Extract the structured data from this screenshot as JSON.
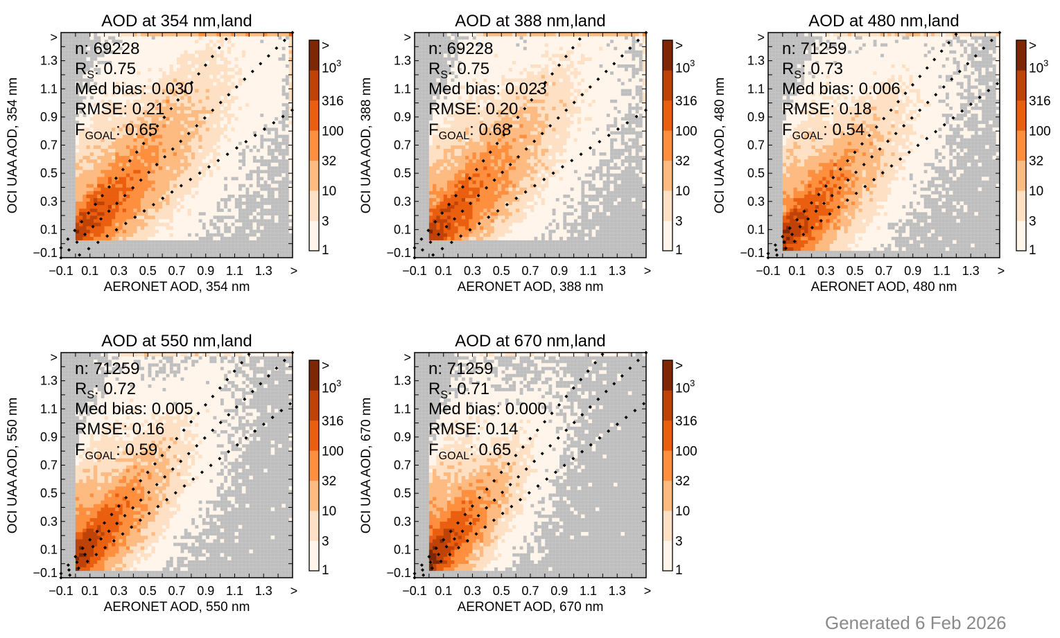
{
  "chart_data": [
    {
      "type": "heatmap",
      "title": "AOD at 354 nm,land",
      "xlabel": "AERONET AOD, 354 nm",
      "ylabel": "OCI UAA AOD, 354 nm",
      "wavelength_nm": 354,
      "stats": {
        "n": "n: 69228",
        "rs_main": "R",
        "rs_sub": "S",
        "rs_val": ": 0.75",
        "med_bias": "Med bias: 0.030",
        "rmse": "RMSE: 0.21",
        "fgoal_main": "F",
        "fgoal_sub": "GOAL",
        "fgoal_val": ": 0.65"
      },
      "n": 69228,
      "rs": 0.75,
      "median_bias": 0.03,
      "rmse_value": 0.21,
      "f_goal": 0.65,
      "envelope": {
        "offset": 0.1,
        "slope": 0.3
      }
    },
    {
      "type": "heatmap",
      "title": "AOD at 388 nm,land",
      "xlabel": "AERONET AOD, 388 nm",
      "ylabel": "OCI UAA AOD, 388 nm",
      "wavelength_nm": 388,
      "stats": {
        "n": "n: 69228",
        "rs_main": "R",
        "rs_sub": "S",
        "rs_val": ": 0.75",
        "med_bias": "Med bias: 0.023",
        "rmse": "RMSE: 0.20",
        "fgoal_main": "F",
        "fgoal_sub": "GOAL",
        "fgoal_val": ": 0.68"
      },
      "n": 69228,
      "rs": 0.75,
      "median_bias": 0.023,
      "rmse_value": 0.2,
      "f_goal": 0.68,
      "envelope": {
        "offset": 0.1,
        "slope": 0.3
      }
    },
    {
      "type": "heatmap",
      "title": "AOD at 480 nm,land",
      "xlabel": "AERONET AOD, 480 nm",
      "ylabel": "OCI UAA AOD, 480 nm",
      "wavelength_nm": 480,
      "stats": {
        "n": "n: 71259",
        "rs_main": "R",
        "rs_sub": "S",
        "rs_val": ": 0.73",
        "med_bias": "Med bias: 0.006",
        "rmse": "RMSE: 0.18",
        "fgoal_main": "F",
        "fgoal_sub": "GOAL",
        "fgoal_val": ": 0.54"
      },
      "n": 71259,
      "rs": 0.73,
      "median_bias": 0.006,
      "rmse_value": 0.18,
      "f_goal": 0.54,
      "envelope": {
        "offset": 0.05,
        "slope": 0.2
      }
    },
    {
      "type": "heatmap",
      "title": "AOD at 550 nm,land",
      "xlabel": "AERONET AOD, 550 nm",
      "ylabel": "OCI UAA AOD, 550 nm",
      "wavelength_nm": 550,
      "stats": {
        "n": "n: 71259",
        "rs_main": "R",
        "rs_sub": "S",
        "rs_val": ": 0.72",
        "med_bias": "Med bias: 0.005",
        "rmse": "RMSE: 0.16",
        "fgoal_main": "F",
        "fgoal_sub": "GOAL",
        "fgoal_val": ": 0.59"
      },
      "n": 71259,
      "rs": 0.72,
      "median_bias": 0.005,
      "rmse_value": 0.16,
      "f_goal": 0.59,
      "envelope": {
        "offset": 0.05,
        "slope": 0.2
      }
    },
    {
      "type": "heatmap",
      "title": "AOD at 670 nm,land",
      "xlabel": "AERONET AOD, 670 nm",
      "ylabel": "OCI UAA AOD, 670 nm",
      "wavelength_nm": 670,
      "stats": {
        "n": "n: 71259",
        "rs_main": "R",
        "rs_sub": "S",
        "rs_val": ": 0.71",
        "med_bias": "Med bias: 0.000",
        "rmse": "RMSE: 0.14",
        "fgoal_main": "F",
        "fgoal_sub": "GOAL",
        "fgoal_val": ": 0.65"
      },
      "n": 71259,
      "rs": 0.71,
      "median_bias": 0.0,
      "rmse_value": 0.14,
      "f_goal": 0.65,
      "envelope": {
        "offset": 0.05,
        "slope": 0.2
      }
    }
  ],
  "axes": {
    "xlim": [
      -0.1,
      1.5
    ],
    "ylim": [
      -0.1,
      1.5
    ],
    "bin_width": 0.025,
    "tick_values": [
      -0.1,
      0.1,
      0.3,
      0.5,
      0.7,
      0.9,
      1.1,
      1.3
    ],
    "tick_labels": [
      "−0.1",
      "0.1",
      "0.3",
      "0.5",
      "0.7",
      "0.9",
      "1.1",
      "1.3"
    ],
    "overflow_label": ">",
    "reference_lines": [
      "1:1",
      "goal envelope upper",
      "goal envelope lower"
    ],
    "empty_bin_color": "#bebebe"
  },
  "colorbar": {
    "scale": "log",
    "boundaries": [
      1,
      3,
      10,
      32,
      100,
      316,
      1000
    ],
    "labels": [
      "1",
      "3",
      "10",
      "32",
      "100",
      "316",
      "10",
      "3",
      ">"
    ],
    "colors": [
      "#fff5eb",
      "#fee0c4",
      "#fdbb82",
      "#fd8f3f",
      "#ea5f0f",
      "#bf4206",
      "#7f2704"
    ]
  },
  "footer": "Generated 6 Feb 2026"
}
